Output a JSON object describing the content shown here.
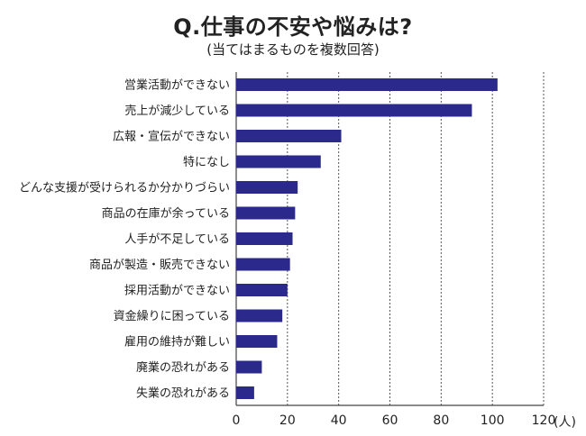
{
  "chart_data": {
    "type": "bar",
    "orientation": "horizontal",
    "title": "Q.仕事の不安や悩みは?",
    "subtitle": "(当てはまるものを複数回答)",
    "unit": "(人)",
    "categories": [
      "営業活動ができない",
      "売上が減少している",
      "広報・宣伝ができない",
      "特になし",
      "どんな支援が受けられるか分かりづらい",
      "商品の在庫が余っている",
      "人手が不足している",
      "商品が製造・販売できない",
      "採用活動ができない",
      "資金繰りに困っている",
      "雇用の維持が難しい",
      "廃業の恐れがある",
      "失業の恐れがある"
    ],
    "values": [
      102,
      92,
      41,
      33,
      24,
      23,
      22,
      21,
      20,
      18,
      16,
      10,
      7
    ],
    "xlim": [
      0,
      120
    ],
    "xticks": [
      0,
      20,
      40,
      60,
      80,
      100,
      120
    ],
    "grid": "vertical dashed",
    "bar_color": "#2b2a8c"
  }
}
